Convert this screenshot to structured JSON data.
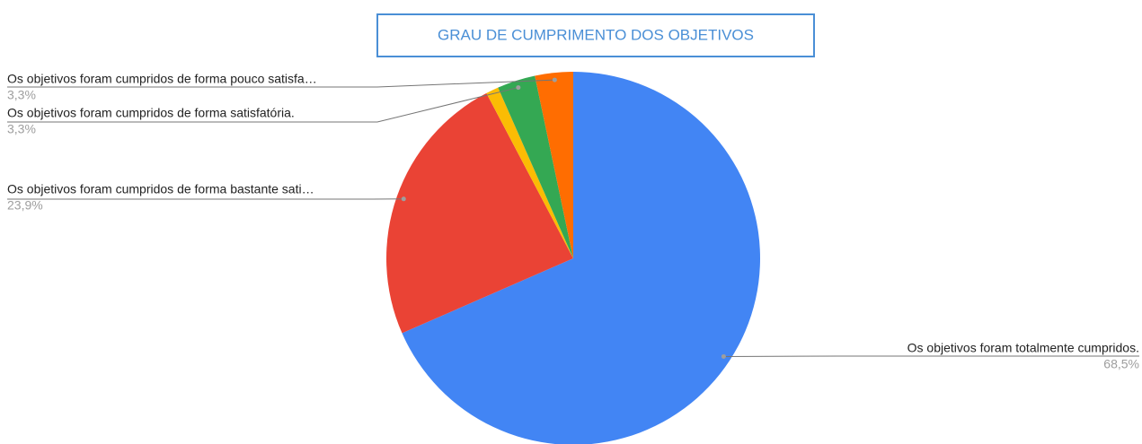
{
  "chart_data": {
    "type": "pie",
    "title": "GRAU DE CUMPRIMENTO DOS OBJETIVOS",
    "categories": [
      "Os objetivos foram totalmente cumpridos.",
      "Os objetivos foram cumpridos de forma bastante sati…",
      null,
      "Os objetivos foram cumpridos de forma satisfatória.",
      "Os objetivos foram cumpridos de forma pouco satisfa…"
    ],
    "values": [
      68.5,
      23.9,
      1.1,
      3.3,
      3.3
    ],
    "value_labels": [
      "68,5%",
      "23,9%",
      null,
      "3,3%",
      "3,3%"
    ],
    "colors": [
      "#4285f4",
      "#ea4335",
      "#fbbc04",
      "#34a853",
      "#ff6d01"
    ]
  }
}
